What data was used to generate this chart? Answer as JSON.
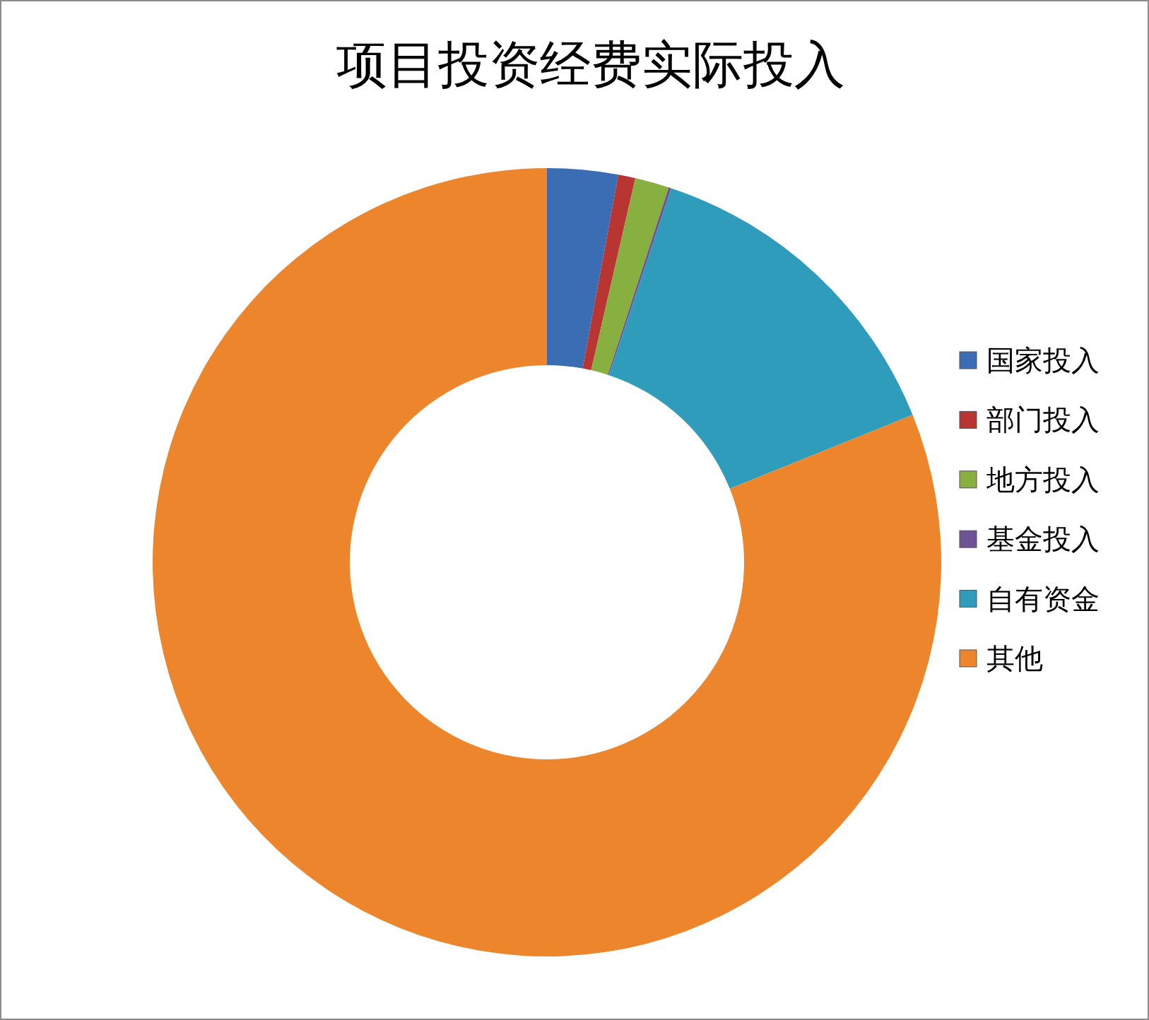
{
  "chart_data": {
    "type": "donut",
    "title": "项目投资经费实际投入",
    "categories": [
      "国家投入",
      "部门投入",
      "地方投入",
      "基金投入",
      "自有资金",
      "其他"
    ],
    "values": [
      2.9,
      0.7,
      1.4,
      0.1,
      13.8,
      81.1
    ],
    "colors": [
      "#3a6db3",
      "#b83532",
      "#88b040",
      "#6e5294",
      "#2e9cba",
      "#ec852c"
    ],
    "legend": "right"
  }
}
